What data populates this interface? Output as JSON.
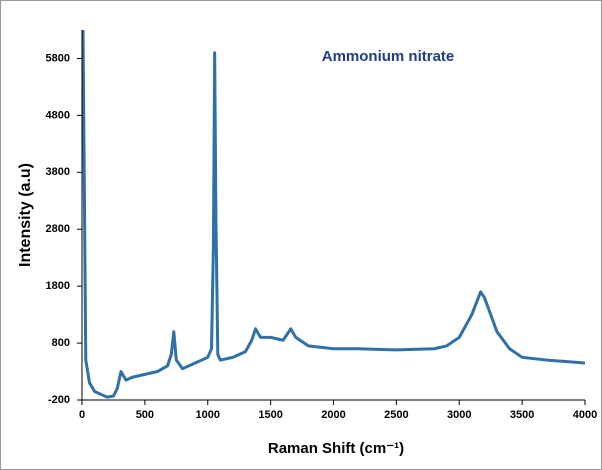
{
  "chart_data": {
    "type": "line",
    "annotation": "Ammonium nitrate",
    "xlabel": "Raman Shift (cm⁻¹)",
    "ylabel": "Intensity (a.u)",
    "x": [
      0,
      8,
      30,
      60,
      100,
      150,
      200,
      250,
      280,
      310,
      350,
      400,
      500,
      600,
      680,
      710,
      730,
      750,
      800,
      900,
      1000,
      1030,
      1045,
      1055,
      1065,
      1080,
      1100,
      1200,
      1300,
      1350,
      1380,
      1420,
      1500,
      1600,
      1660,
      1700,
      1800,
      2000,
      2200,
      2500,
      2800,
      2900,
      3000,
      3100,
      3170,
      3200,
      3300,
      3400,
      3500,
      3700,
      4000
    ],
    "values": [
      5050,
      6300,
      500,
      100,
      -50,
      -100,
      -150,
      -130,
      0,
      300,
      150,
      200,
      250,
      300,
      400,
      600,
      1000,
      500,
      350,
      450,
      550,
      700,
      2500,
      5900,
      3000,
      600,
      500,
      550,
      650,
      850,
      1050,
      900,
      900,
      850,
      1050,
      900,
      750,
      700,
      700,
      680,
      700,
      750,
      900,
      1300,
      1700,
      1600,
      1000,
      700,
      550,
      500,
      450
    ],
    "color": "#2f70a8",
    "xlim": [
      0,
      4000
    ],
    "xticks": [
      0,
      500,
      1000,
      1500,
      2000,
      2500,
      3000,
      3500,
      4000
    ],
    "ylim": [
      -200,
      6300
    ],
    "yticks": [
      -200,
      800,
      1800,
      2800,
      3800,
      4800,
      5800
    ],
    "grid": false
  }
}
